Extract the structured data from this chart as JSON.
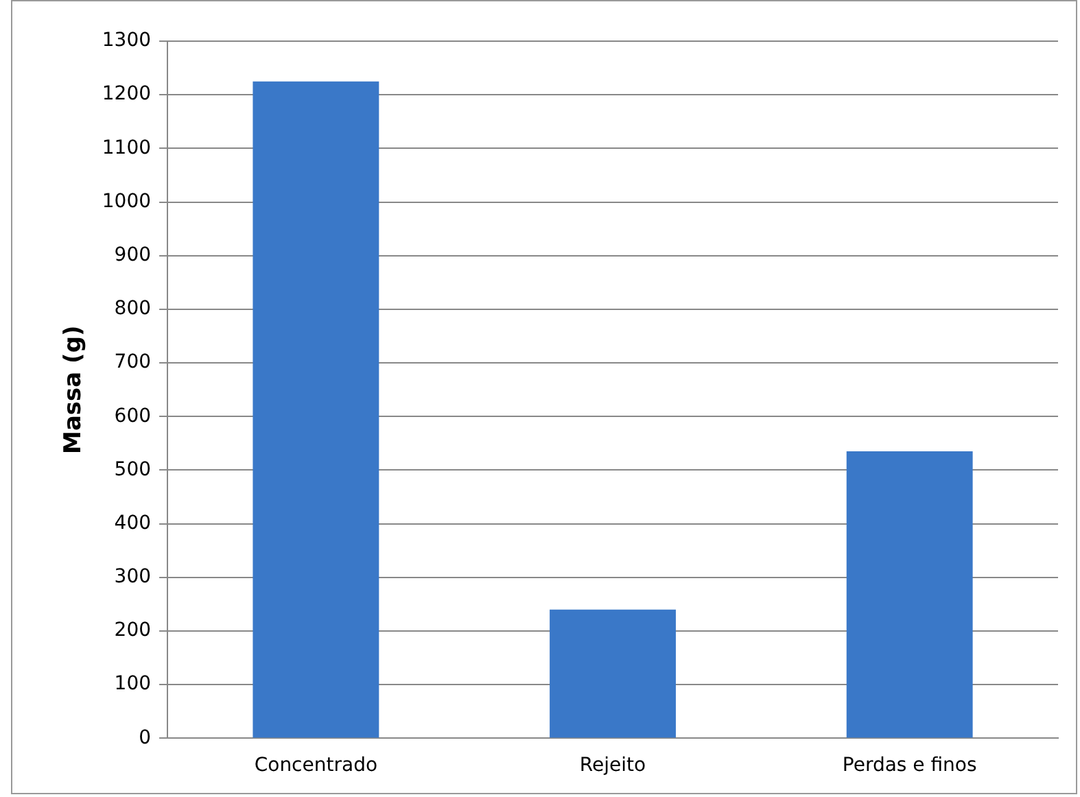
{
  "chart_data": {
    "type": "bar",
    "ylabel": "Massa (g)",
    "categories": [
      "Concentrado",
      "Rejeito",
      "Perdas e finos"
    ],
    "values": [
      1225,
      240,
      535
    ],
    "color": "#3a78c8",
    "ylim": [
      0,
      1300
    ],
    "yticks": [
      0,
      100,
      200,
      300,
      400,
      500,
      600,
      700,
      800,
      900,
      1000,
      1100,
      1200,
      1300
    ],
    "grid": "y",
    "legend": false
  }
}
